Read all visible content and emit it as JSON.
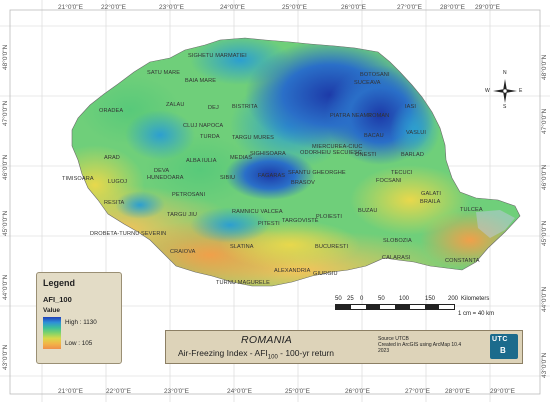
{
  "map": {
    "country": "ROMANIA",
    "title_line": "Air-Freezing Index - AFI",
    "title_sub": "100",
    "title_tail": " - 100-yr return",
    "source_lines": [
      "Source UTCB",
      "Created in ArcGIS using ArcMap 10.4",
      "2023"
    ],
    "logo_text_top": "UTC",
    "logo_text_bottom": "B"
  },
  "legend": {
    "title": "Legend",
    "layer": "AFI_100",
    "value_label": "Value",
    "high_label": "High : 1130",
    "low_label": "Low : 105",
    "high_value": 1130,
    "low_value": 105,
    "ramp_colors": [
      "#1f3fb8",
      "#2e8fd8",
      "#3cbf9a",
      "#7fd36b",
      "#d8d94a",
      "#f2b548",
      "#ef8f4a"
    ]
  },
  "scale": {
    "numbers": [
      "50",
      "25",
      "0",
      "50",
      "100",
      "150",
      "200"
    ],
    "units": "Kilometers",
    "ratio": "1 cm = 40 km"
  },
  "compass": {
    "n": "N",
    "s": "S",
    "e": "E",
    "w": "W"
  },
  "longitude_ticks": [
    "21°0'0\"E",
    "22°0'0\"E",
    "23°0'0\"E",
    "24°0'0\"E",
    "25°0'0\"E",
    "26°0'0\"E",
    "27°0'0\"E",
    "28°0'0\"E",
    "29°0'0\"E"
  ],
  "latitude_ticks": [
    "48°0'0\"N",
    "47°0'0\"N",
    "46°0'0\"N",
    "45°0'0\"N",
    "44°0'0\"N",
    "43°0'0\"N"
  ],
  "cities": [
    "SIGHETU MARMATIEI",
    "BOTOSANI",
    "SATU MARE",
    "BAIA MARE",
    "SUCEAVA",
    "ORADEA",
    "ZALAU",
    "DEJ",
    "BISTRITA",
    "PIATRA NEAMT",
    "ROMAN",
    "IASI",
    "CLUJ NAPOCA",
    "TARGU MURES",
    "BACAU",
    "VASLUI",
    "TURDA",
    "MIERCUREA-CIUC",
    "ODORHEIU SECUIESC",
    "ONESTI",
    "BARLAD",
    "ARAD",
    "ALBA IULIA",
    "MEDIAS",
    "SIGHISOARA",
    "SFANTU GHEORGHE",
    "DEVA",
    "HUNEDOARA",
    "SIBIU",
    "FAGARAS",
    "BRASOV",
    "FOCSANI",
    "TECUCI",
    "TIMISOARA",
    "LUGOJ",
    "PETROSANI",
    "GALATI",
    "BRAILA",
    "RESITA",
    "TULCEA",
    "TARGU JIU",
    "RAMNICU VALCEA",
    "TARGOVISTE",
    "PLOIESTI",
    "BUZAU",
    "PITESTI",
    "DROBETA-TURNU SEVERIN",
    "SLOBOZIA",
    "SLATINA",
    "BUCURESTI",
    "CRAIOVA",
    "CALARASI",
    "CONSTANTA",
    "ALEXANDRIA",
    "GIURGIU",
    "TURNU MAGURELE"
  ]
}
